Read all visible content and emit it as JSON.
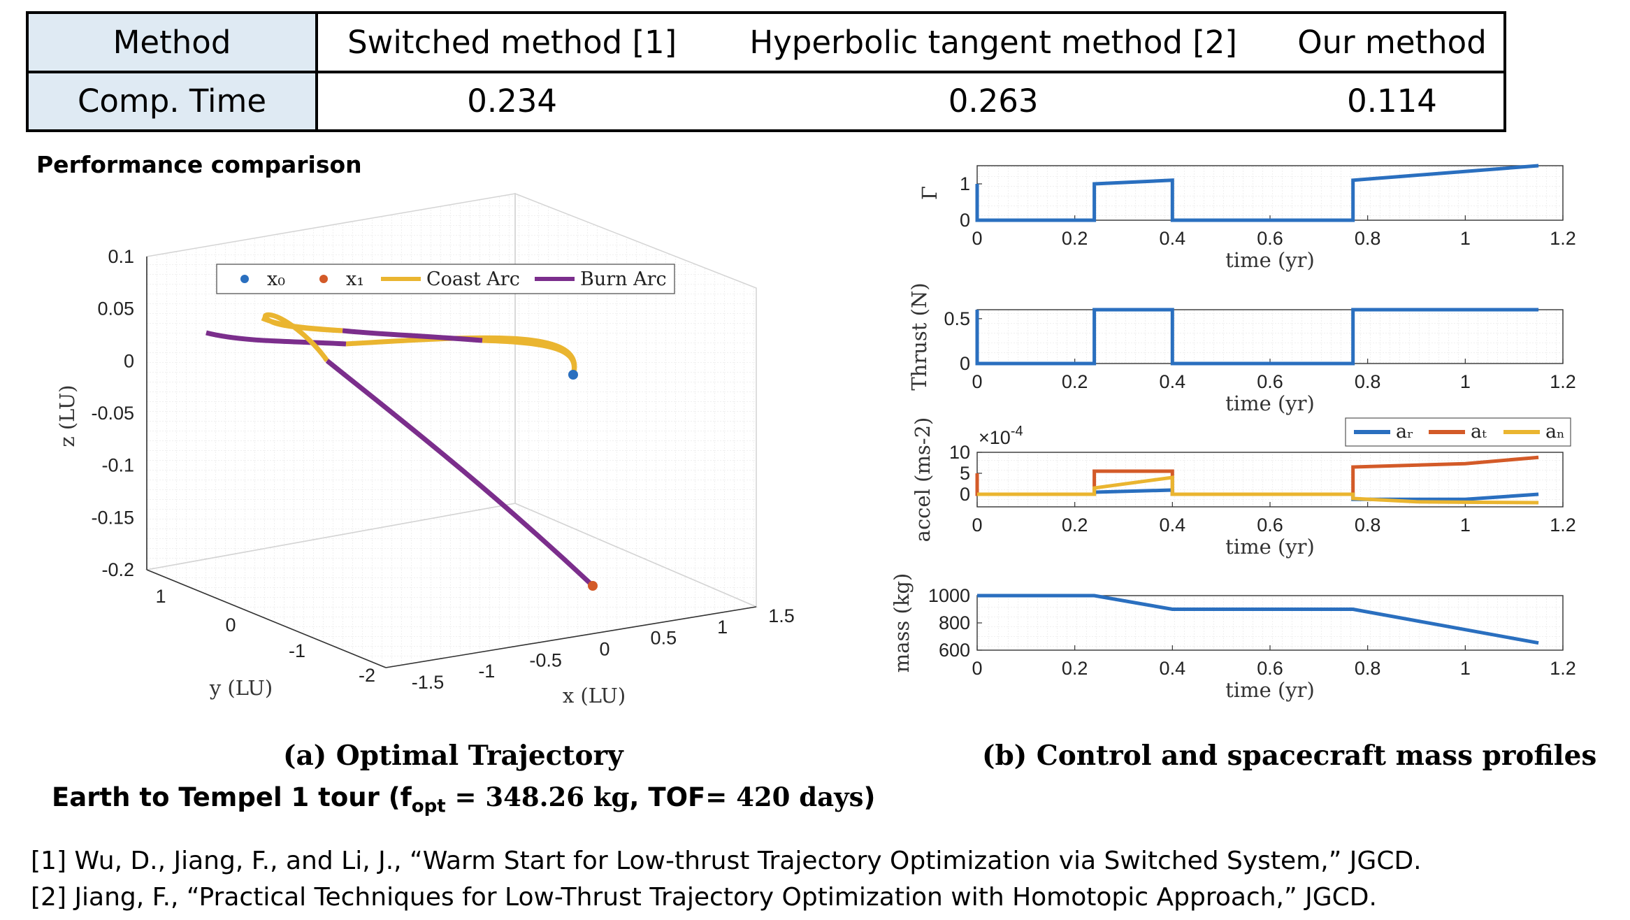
{
  "table": {
    "header_label": "Method",
    "methods": [
      "Switched method [1]",
      "Hyperbolic tangent method [2]",
      "Our method"
    ],
    "row_label": "Comp.  Time",
    "times": [
      "0.234",
      "0.263",
      "0.114"
    ]
  },
  "section_title": "Performance comparison",
  "captions": {
    "left": "(a) Optimal Trajectory",
    "right": "(b) Control and spacecraft mass profiles"
  },
  "tour": {
    "prefix": "Earth to Tempel 1 tour (f",
    "sub": "opt",
    "eq": " = ",
    "value": "348.26 kg",
    "mid": ", TOF= ",
    "tof": "420 days",
    "suffix": ")"
  },
  "references": [
    "[1] Wu, D., Jiang, F., and Li, J., “Warm Start for Low-thrust Trajectory Optimization via Switched System,” JGCD.",
    "[2] Jiang, F., “Practical Techniques for Low-Thrust Trajectory Optimization with Homotopic Approach,” JGCD."
  ],
  "chart_data": [
    {
      "type": "line",
      "title": "Optimal Trajectory",
      "xlabel": "x (LU)",
      "ylabel": "y (LU)",
      "zlabel": "z (LU)",
      "xlim": [
        -1.5,
        1.5
      ],
      "ylim": [
        -2,
        1
      ],
      "zlim": [
        -0.2,
        0.1
      ],
      "xticks": [
        "-1.5",
        "-1",
        "-0.5",
        "0",
        "0.5",
        "1",
        "1.5"
      ],
      "yticks": [
        "-2",
        "-1",
        "0",
        "1"
      ],
      "zticks": [
        "0.1",
        "0.05",
        "0",
        "-0.05",
        "-0.1",
        "-0.15",
        "-0.2"
      ],
      "legend": {
        "position": "top",
        "entries": [
          "x₀",
          "x₁",
          "Coast Arc",
          "Burn Arc"
        ]
      },
      "grid": true,
      "colors": {
        "x0": "#2a6fbf",
        "x1": "#d35a28",
        "coast": "#eab530",
        "burn": "#7b2e8c"
      },
      "points": {
        "x0_z": -0.013,
        "x1_z": -0.21
      }
    },
    {
      "type": "line",
      "ylabel": "Γ",
      "xlabel": "time (yr)",
      "xlim": [
        0,
        1.2
      ],
      "ylim": [
        0,
        1.5
      ],
      "xticks": [
        "0",
        "0.2",
        "0.4",
        "0.6",
        "0.8",
        "1",
        "1.2"
      ],
      "yticks": [
        "0",
        "1"
      ],
      "series": [
        {
          "name": "Γ",
          "color": "#2a6fbf",
          "x": [
            0,
            0,
            0.002,
            0.24,
            0.24,
            0.4,
            0.4,
            0.77,
            0.77,
            1.15
          ],
          "y": [
            1,
            0,
            0,
            0,
            1,
            1.1,
            0,
            0,
            1.1,
            1.5
          ]
        }
      ]
    },
    {
      "type": "line",
      "ylabel": "Thrust (N)",
      "xlabel": "time (yr)",
      "xlim": [
        0,
        1.2
      ],
      "ylim": [
        0,
        0.6
      ],
      "xticks": [
        "0",
        "0.2",
        "0.4",
        "0.6",
        "0.8",
        "1",
        "1.2"
      ],
      "yticks": [
        "0",
        "0.5"
      ],
      "series": [
        {
          "name": "Thrust",
          "color": "#2a6fbf",
          "x": [
            0,
            0,
            0.002,
            0.24,
            0.24,
            0.4,
            0.4,
            0.77,
            0.77,
            1.15
          ],
          "y": [
            0.6,
            0,
            0,
            0,
            0.6,
            0.6,
            0,
            0,
            0.6,
            0.6
          ]
        }
      ]
    },
    {
      "type": "line",
      "ylabel": "accel (ms-2)",
      "xlabel": "time (yr)",
      "scale_label": "×10",
      "scale_exp": "-4",
      "xlim": [
        0,
        1.2
      ],
      "ylim": [
        -3,
        10
      ],
      "xticks": [
        "0",
        "0.2",
        "0.4",
        "0.6",
        "0.8",
        "1",
        "1.2"
      ],
      "yticks": [
        "0",
        "5",
        "10"
      ],
      "legend": {
        "position": "top-right",
        "entries": [
          "aᵣ",
          "aₜ",
          "aₙ"
        ]
      },
      "series": [
        {
          "name": "a_r",
          "color": "#2a6fbf",
          "x": [
            0,
            0.24,
            0.24,
            0.4,
            0.4,
            0.77,
            0.77,
            1.0,
            1.15
          ],
          "y": [
            0,
            0,
            0.5,
            1,
            0,
            0,
            -1.2,
            -1.2,
            0
          ]
        },
        {
          "name": "a_t",
          "color": "#d35a28",
          "x": [
            0,
            0,
            0.002,
            0.24,
            0.24,
            0.4,
            0.4,
            0.77,
            0.77,
            1.0,
            1.15
          ],
          "y": [
            5,
            0,
            0,
            0,
            5.5,
            5.5,
            0,
            0,
            6.5,
            7.3,
            8.8
          ]
        },
        {
          "name": "a_n",
          "color": "#eab530",
          "x": [
            0,
            0.24,
            0.24,
            0.4,
            0.4,
            0.77,
            0.77,
            0.9,
            1.0,
            1.15
          ],
          "y": [
            0,
            0,
            1.5,
            4,
            0,
            0,
            -1,
            -1.8,
            -1.9,
            -2
          ]
        }
      ]
    },
    {
      "type": "line",
      "ylabel": "mass (kg)",
      "xlabel": "time (yr)",
      "xlim": [
        0,
        1.2
      ],
      "ylim": [
        600,
        1000
      ],
      "xticks": [
        "0",
        "0.2",
        "0.4",
        "0.6",
        "0.8",
        "1",
        "1.2"
      ],
      "yticks": [
        "600",
        "800",
        "1000"
      ],
      "series": [
        {
          "name": "mass",
          "color": "#2a6fbf",
          "x": [
            0,
            0.24,
            0.4,
            0.77,
            1.15
          ],
          "y": [
            1000,
            1000,
            900,
            900,
            653
          ]
        }
      ]
    }
  ]
}
